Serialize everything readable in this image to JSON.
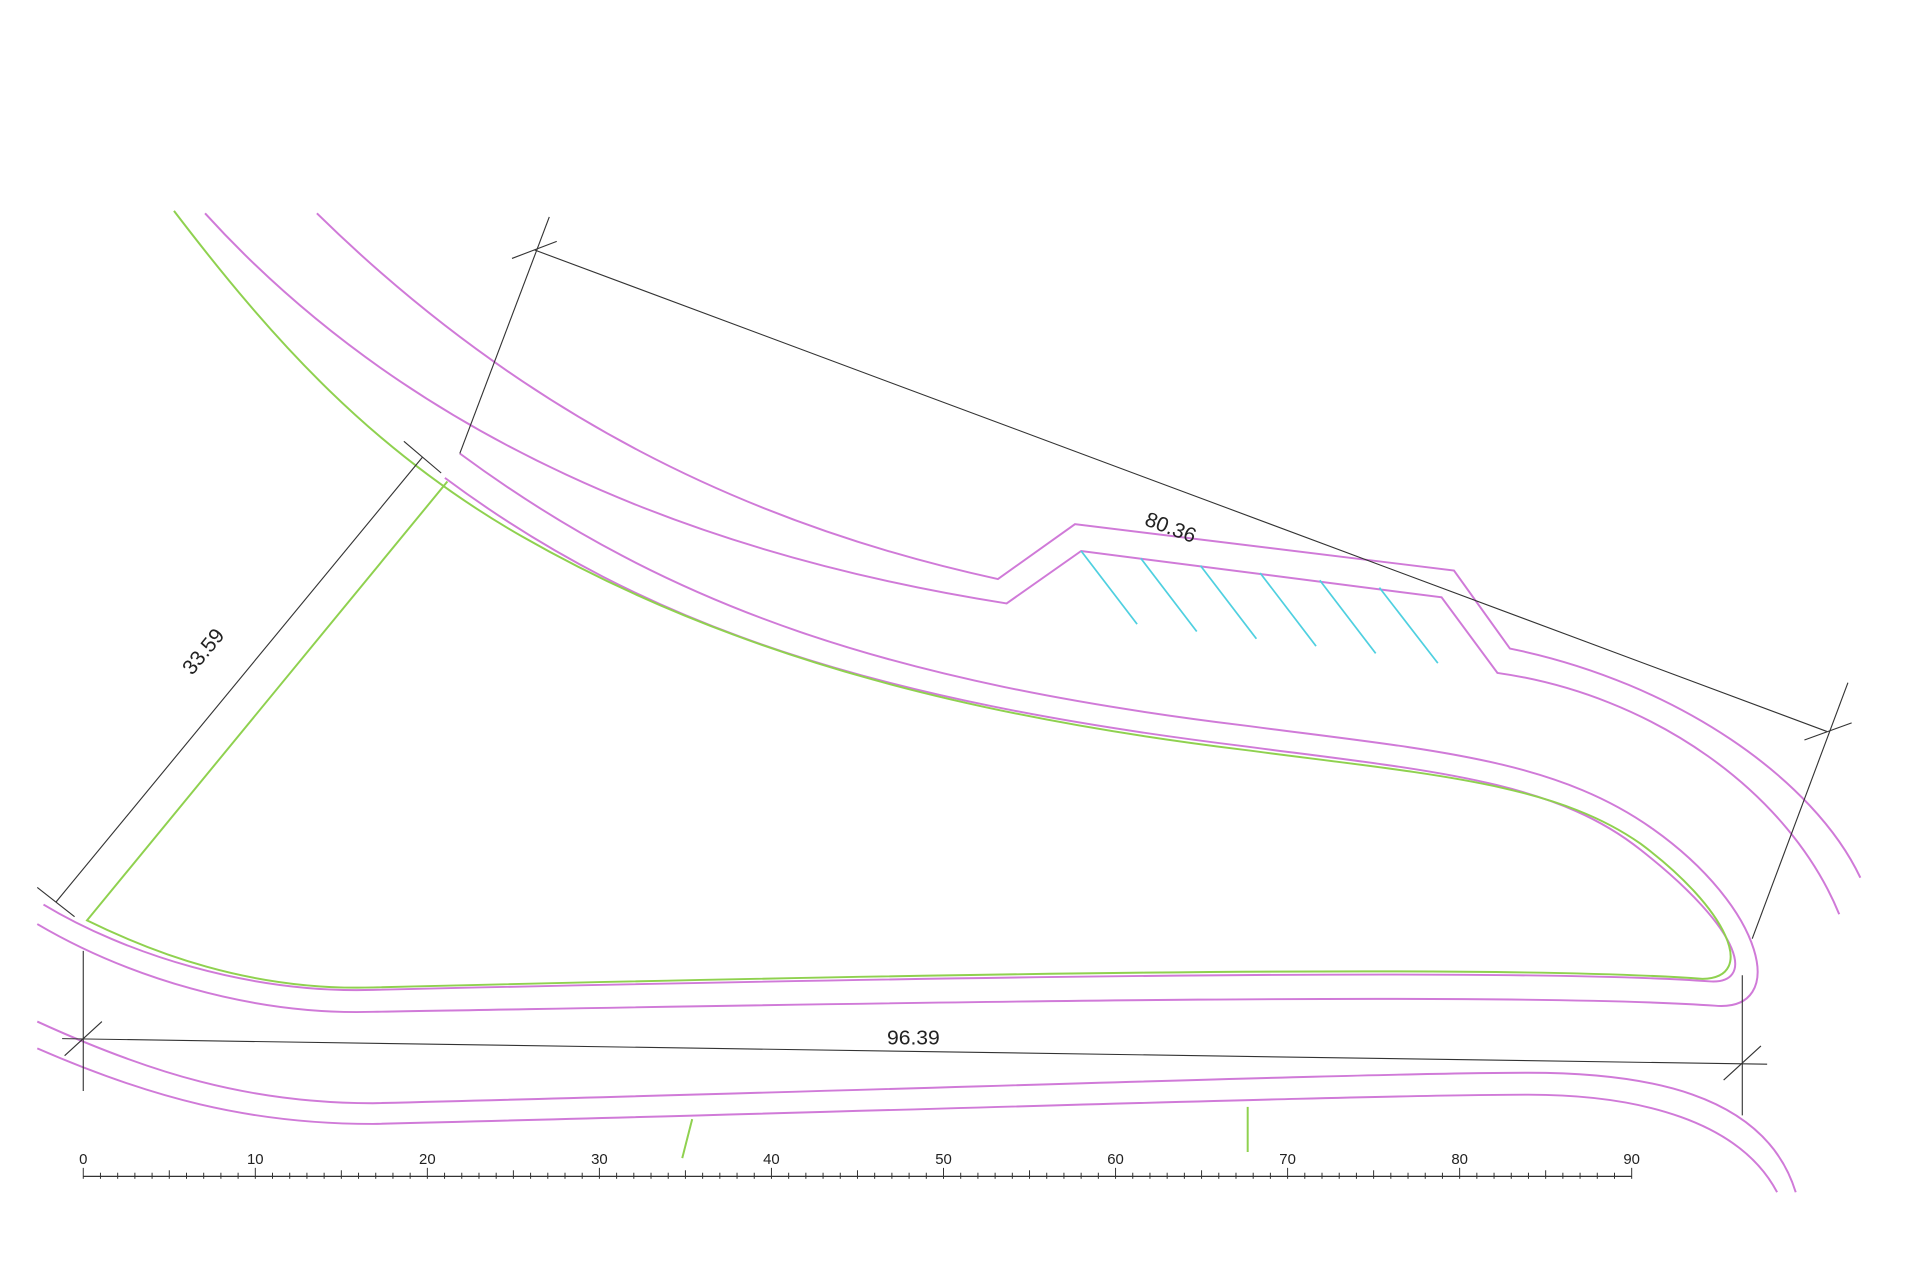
{
  "dimensions": [
    {
      "label": 80.36
    },
    {
      "label": 33.59
    },
    {
      "label": 96.39
    }
  ],
  "scale": {
    "labels": [
      0,
      10,
      20,
      30,
      40,
      50,
      60,
      70,
      80,
      90
    ]
  }
}
